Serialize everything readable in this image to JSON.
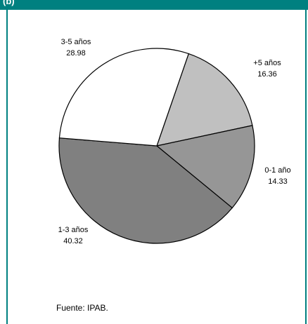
{
  "header": {
    "label": "(b)"
  },
  "chart_data": {
    "type": "pie",
    "slices": [
      {
        "label": "+5 años",
        "value": 16.36,
        "value_text": "16.36",
        "color": "#c0c0c0"
      },
      {
        "label": "0-1 año",
        "value": 14.33,
        "value_text": "14.33",
        "color": "#969696"
      },
      {
        "label": "1-3 años",
        "value": 40.32,
        "value_text": "40.32",
        "color": "#808080"
      },
      {
        "label": "3-5 años",
        "value": 28.98,
        "value_text": "28.98",
        "color": "#ffffff"
      }
    ],
    "outline_color": "#000000",
    "legend": "none"
  },
  "footer": {
    "source": "Fuente: IPAB."
  },
  "colors": {
    "frame_accent": "#008080"
  }
}
